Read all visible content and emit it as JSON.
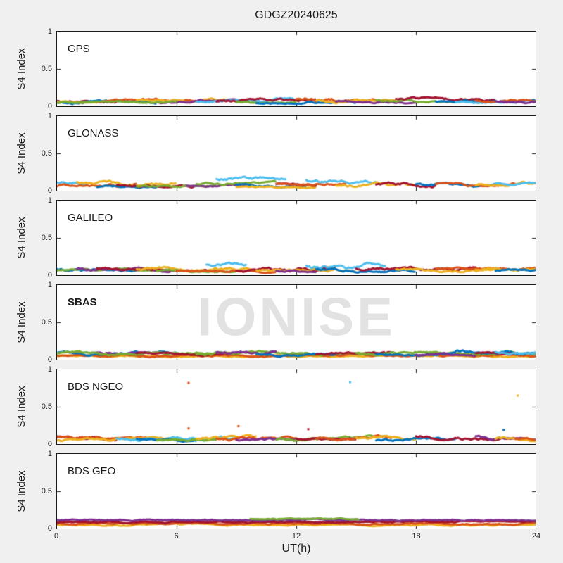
{
  "title": "GDGZ20240625",
  "watermark": "IONISE",
  "axes": {
    "xlabel": "UT(h)",
    "ylabel": "S4 Index",
    "xticks": [
      "0",
      "6",
      "12",
      "18",
      "24"
    ],
    "xtick_hours": [
      0,
      6,
      12,
      18,
      24
    ],
    "inner_tick_hours": [
      6,
      12,
      18
    ],
    "yticks": [
      "1",
      "0.5",
      "0"
    ],
    "ytick_values": [
      1,
      0.5,
      0
    ]
  },
  "colors": {
    "background": "#f0f0f0",
    "panel_bg": "#ffffff",
    "axis": "#1a1a1a",
    "tick_text": "#262626",
    "watermark": "#e2e2e2",
    "palette": [
      "#0072BD",
      "#D95319",
      "#EDB120",
      "#7E2F8E",
      "#77AC30",
      "#4DBEEE",
      "#A2142F"
    ]
  },
  "chart_data": [
    {
      "type": "scatter",
      "label": "GPS",
      "xlim": [
        0,
        24
      ],
      "ylim": [
        0,
        1
      ],
      "band": {
        "mean": 0.07,
        "min": 0.02,
        "max": 0.15
      },
      "segments": [
        {
          "c": 6,
          "x0": 0,
          "x1": 3,
          "m": 0.07,
          "a": 0.045
        },
        {
          "c": 0,
          "x0": 0,
          "x1": 5,
          "m": 0.06,
          "a": 0.04
        },
        {
          "c": 2,
          "x0": 0,
          "x1": 2,
          "m": 0.06,
          "a": 0.03
        },
        {
          "c": 1,
          "x0": 2,
          "x1": 7,
          "m": 0.07,
          "a": 0.04
        },
        {
          "c": 2,
          "x0": 4,
          "x1": 9,
          "m": 0.08,
          "a": 0.04
        },
        {
          "c": 3,
          "x0": 5,
          "x1": 10,
          "m": 0.06,
          "a": 0.035
        },
        {
          "c": 4,
          "x0": 0,
          "x1": 6,
          "m": 0.05,
          "a": 0.03
        },
        {
          "c": 5,
          "x0": 7,
          "x1": 12,
          "m": 0.07,
          "a": 0.04
        },
        {
          "c": 6,
          "x0": 8,
          "x1": 13,
          "m": 0.08,
          "a": 0.045
        },
        {
          "c": 4,
          "x0": 9,
          "x1": 12,
          "m": 0.05,
          "a": 0.03
        },
        {
          "c": 0,
          "x0": 10,
          "x1": 15,
          "m": 0.06,
          "a": 0.035
        },
        {
          "c": 1,
          "x0": 12,
          "x1": 16,
          "m": 0.09,
          "a": 0.05
        },
        {
          "c": 2,
          "x0": 13,
          "x1": 17,
          "m": 0.07,
          "a": 0.04
        },
        {
          "c": 3,
          "x0": 14,
          "x1": 18,
          "m": 0.06,
          "a": 0.03
        },
        {
          "c": 4,
          "x0": 16,
          "x1": 21,
          "m": 0.07,
          "a": 0.04
        },
        {
          "c": 6,
          "x0": 17,
          "x1": 22,
          "m": 0.08,
          "a": 0.045
        },
        {
          "c": 0,
          "x0": 19,
          "x1": 24,
          "m": 0.07,
          "a": 0.04
        },
        {
          "c": 5,
          "x0": 20,
          "x1": 23,
          "m": 0.06,
          "a": 0.03
        },
        {
          "c": 1,
          "x0": 21,
          "x1": 24,
          "m": 0.08,
          "a": 0.04
        },
        {
          "c": 3,
          "x0": 22,
          "x1": 24,
          "m": 0.07,
          "a": 0.035
        }
      ],
      "outliers": []
    },
    {
      "type": "scatter",
      "label": "GLONASS",
      "xlim": [
        0,
        24
      ],
      "ylim": [
        0,
        1
      ],
      "band": {
        "mean": 0.09,
        "min": 0.02,
        "max": 0.22
      },
      "segments": [
        {
          "c": 5,
          "x0": 0,
          "x1": 1.5,
          "m": 0.12,
          "a": 0.05
        },
        {
          "c": 1,
          "x0": 0,
          "x1": 4,
          "m": 0.08,
          "a": 0.04
        },
        {
          "c": 2,
          "x0": 1,
          "x1": 6,
          "m": 0.09,
          "a": 0.05
        },
        {
          "c": 0,
          "x0": 2,
          "x1": 5,
          "m": 0.06,
          "a": 0.03
        },
        {
          "c": 6,
          "x0": 3,
          "x1": 7,
          "m": 0.07,
          "a": 0.04
        },
        {
          "c": 4,
          "x0": 4,
          "x1": 8,
          "m": 0.06,
          "a": 0.03
        },
        {
          "c": 3,
          "x0": 6.5,
          "x1": 9.5,
          "m": 0.06,
          "a": 0.03
        },
        {
          "c": 4,
          "x0": 7,
          "x1": 11,
          "m": 0.1,
          "a": 0.035
        },
        {
          "c": 5,
          "x0": 8,
          "x1": 11.5,
          "m": 0.16,
          "a": 0.05
        },
        {
          "c": 0,
          "x0": 9,
          "x1": 12.5,
          "m": 0.07,
          "a": 0.035
        },
        {
          "c": 2,
          "x0": 9,
          "x1": 13,
          "m": 0.06,
          "a": 0.03
        },
        {
          "c": 6,
          "x0": 11,
          "x1": 13,
          "m": 0.08,
          "a": 0.04
        },
        {
          "c": 1,
          "x0": 11,
          "x1": 14.5,
          "m": 0.08,
          "a": 0.04
        },
        {
          "c": 5,
          "x0": 12.5,
          "x1": 16,
          "m": 0.13,
          "a": 0.05
        },
        {
          "c": 2,
          "x0": 14,
          "x1": 18,
          "m": 0.08,
          "a": 0.05
        },
        {
          "c": 6,
          "x0": 16,
          "x1": 19,
          "m": 0.09,
          "a": 0.05
        },
        {
          "c": 0,
          "x0": 18,
          "x1": 22,
          "m": 0.07,
          "a": 0.04
        },
        {
          "c": 1,
          "x0": 19,
          "x1": 23,
          "m": 0.08,
          "a": 0.04
        },
        {
          "c": 2,
          "x0": 21,
          "x1": 24,
          "m": 0.09,
          "a": 0.05
        },
        {
          "c": 5,
          "x0": 22,
          "x1": 24,
          "m": 0.09,
          "a": 0.04
        }
      ],
      "outliers": []
    },
    {
      "type": "scatter",
      "label": "GALILEO",
      "xlim": [
        0,
        24
      ],
      "ylim": [
        0,
        1
      ],
      "band": {
        "mean": 0.08,
        "min": 0.02,
        "max": 0.2
      },
      "segments": [
        {
          "c": 0,
          "x0": 0,
          "x1": 4,
          "m": 0.07,
          "a": 0.04
        },
        {
          "c": 4,
          "x0": 0,
          "x1": 5,
          "m": 0.06,
          "a": 0.035
        },
        {
          "c": 3,
          "x0": 1,
          "x1": 6,
          "m": 0.08,
          "a": 0.04
        },
        {
          "c": 6,
          "x0": 2,
          "x1": 8,
          "m": 0.07,
          "a": 0.04
        },
        {
          "c": 2,
          "x0": 4,
          "x1": 10,
          "m": 0.08,
          "a": 0.045
        },
        {
          "c": 4,
          "x0": 5,
          "x1": 9,
          "m": 0.05,
          "a": 0.03
        },
        {
          "c": 1,
          "x0": 6,
          "x1": 11,
          "m": 0.06,
          "a": 0.035
        },
        {
          "c": 5,
          "x0": 7.5,
          "x1": 9.5,
          "m": 0.13,
          "a": 0.05
        },
        {
          "c": 6,
          "x0": 9,
          "x1": 14,
          "m": 0.09,
          "a": 0.05
        },
        {
          "c": 2,
          "x0": 10,
          "x1": 15,
          "m": 0.07,
          "a": 0.04
        },
        {
          "c": 3,
          "x0": 11,
          "x1": 13,
          "m": 0.06,
          "a": 0.03
        },
        {
          "c": 5,
          "x0": 12.5,
          "x1": 16.5,
          "m": 0.12,
          "a": 0.06
        },
        {
          "c": 0,
          "x0": 13,
          "x1": 18,
          "m": 0.06,
          "a": 0.035
        },
        {
          "c": 6,
          "x0": 15,
          "x1": 21,
          "m": 0.08,
          "a": 0.045
        },
        {
          "c": 2,
          "x0": 17,
          "x1": 22,
          "m": 0.07,
          "a": 0.04
        },
        {
          "c": 1,
          "x0": 19,
          "x1": 24,
          "m": 0.08,
          "a": 0.045
        },
        {
          "c": 2,
          "x0": 21,
          "x1": 24,
          "m": 0.09,
          "a": 0.05
        },
        {
          "c": 0,
          "x0": 22,
          "x1": 24,
          "m": 0.07,
          "a": 0.04
        }
      ],
      "outliers": []
    },
    {
      "type": "scatter",
      "label": "SBAS",
      "xlim": [
        0,
        24
      ],
      "ylim": [
        0,
        1
      ],
      "band": {
        "mean": 0.08,
        "min": 0.03,
        "max": 0.14
      },
      "segments": [
        {
          "c": 2,
          "x0": 0,
          "x1": 24,
          "m": 0.05,
          "a": 0.025
        },
        {
          "c": 1,
          "x0": 0,
          "x1": 24,
          "m": 0.06,
          "a": 0.03
        },
        {
          "c": 0,
          "x0": 0,
          "x1": 6,
          "m": 0.08,
          "a": 0.04
        },
        {
          "c": 3,
          "x0": 2,
          "x1": 5,
          "m": 0.08,
          "a": 0.035
        },
        {
          "c": 4,
          "x0": 0,
          "x1": 8,
          "m": 0.08,
          "a": 0.035
        },
        {
          "c": 6,
          "x0": 4,
          "x1": 9,
          "m": 0.07,
          "a": 0.03
        },
        {
          "c": 4,
          "x0": 7,
          "x1": 16,
          "m": 0.08,
          "a": 0.04
        },
        {
          "c": 3,
          "x0": 8,
          "x1": 11,
          "m": 0.09,
          "a": 0.04
        },
        {
          "c": 0,
          "x0": 10,
          "x1": 14,
          "m": 0.07,
          "a": 0.035
        },
        {
          "c": 6,
          "x0": 13,
          "x1": 17,
          "m": 0.08,
          "a": 0.035
        },
        {
          "c": 4,
          "x0": 15,
          "x1": 24,
          "m": 0.09,
          "a": 0.04
        },
        {
          "c": 0,
          "x0": 16,
          "x1": 20,
          "m": 0.08,
          "a": 0.04
        },
        {
          "c": 3,
          "x0": 18,
          "x1": 21,
          "m": 0.07,
          "a": 0.03
        },
        {
          "c": 0,
          "x0": 20,
          "x1": 24,
          "m": 0.1,
          "a": 0.045
        },
        {
          "c": 6,
          "x0": 21,
          "x1": 23,
          "m": 0.08,
          "a": 0.03
        },
        {
          "c": 5,
          "x0": 22,
          "x1": 24,
          "m": 0.1,
          "a": 0.04
        }
      ],
      "outliers": []
    },
    {
      "type": "scatter",
      "label": "BDS NGEO",
      "xlim": [
        0,
        24
      ],
      "ylim": [
        0,
        1
      ],
      "band": {
        "mean": 0.08,
        "min": 0.02,
        "max": 0.16
      },
      "segments": [
        {
          "c": 6,
          "x0": 0,
          "x1": 3,
          "m": 0.1,
          "a": 0.05
        },
        {
          "c": 1,
          "x0": 0,
          "x1": 5,
          "m": 0.07,
          "a": 0.04
        },
        {
          "c": 2,
          "x0": 0,
          "x1": 6,
          "m": 0.06,
          "a": 0.035
        },
        {
          "c": 5,
          "x0": 3,
          "x1": 9,
          "m": 0.07,
          "a": 0.045
        },
        {
          "c": 0,
          "x0": 4,
          "x1": 7,
          "m": 0.06,
          "a": 0.03
        },
        {
          "c": 4,
          "x0": 5,
          "x1": 8,
          "m": 0.06,
          "a": 0.03
        },
        {
          "c": 2,
          "x0": 7,
          "x1": 10,
          "m": 0.09,
          "a": 0.05
        },
        {
          "c": 1,
          "x0": 8,
          "x1": 13,
          "m": 0.08,
          "a": 0.045
        },
        {
          "c": 3,
          "x0": 9,
          "x1": 12,
          "m": 0.06,
          "a": 0.03
        },
        {
          "c": 4,
          "x0": 11,
          "x1": 16,
          "m": 0.08,
          "a": 0.045
        },
        {
          "c": 6,
          "x0": 12,
          "x1": 15,
          "m": 0.07,
          "a": 0.035
        },
        {
          "c": 1,
          "x0": 13,
          "x1": 17,
          "m": 0.09,
          "a": 0.05
        },
        {
          "c": 2,
          "x0": 15,
          "x1": 18,
          "m": 0.08,
          "a": 0.04
        },
        {
          "c": 0,
          "x0": 16,
          "x1": 20,
          "m": 0.07,
          "a": 0.04
        },
        {
          "c": 6,
          "x0": 18,
          "x1": 23,
          "m": 0.08,
          "a": 0.045
        },
        {
          "c": 3,
          "x0": 21,
          "x1": 24,
          "m": 0.09,
          "a": 0.045
        },
        {
          "c": 2,
          "x0": 22,
          "x1": 24,
          "m": 0.08,
          "a": 0.04
        },
        {
          "c": 1,
          "x0": 23,
          "x1": 24,
          "m": 0.07,
          "a": 0.035
        }
      ],
      "outliers": [
        {
          "c": 1,
          "x": 6.6,
          "y": 0.82
        },
        {
          "c": 1,
          "x": 6.6,
          "y": 0.21
        },
        {
          "c": 1,
          "x": 9.1,
          "y": 0.24
        },
        {
          "c": 5,
          "x": 14.7,
          "y": 0.83
        },
        {
          "c": 6,
          "x": 12.6,
          "y": 0.2
        },
        {
          "c": 0,
          "x": 22.4,
          "y": 0.19
        },
        {
          "c": 2,
          "x": 23.1,
          "y": 0.65
        }
      ]
    },
    {
      "type": "scatter",
      "label": "BDS GEO",
      "xlim": [
        0,
        24
      ],
      "ylim": [
        0,
        1
      ],
      "band": {
        "mean": 0.09,
        "min": 0.03,
        "max": 0.15
      },
      "segments": [
        {
          "c": 2,
          "x0": 0,
          "x1": 24,
          "m": 0.05,
          "a": 0.02
        },
        {
          "c": 1,
          "x0": 0,
          "x1": 24,
          "m": 0.068,
          "a": 0.022
        },
        {
          "c": 6,
          "x0": 0,
          "x1": 24,
          "m": 0.085,
          "a": 0.018
        },
        {
          "c": 3,
          "x0": 0,
          "x1": 24,
          "m": 0.112,
          "a": 0.02
        },
        {
          "c": 4,
          "x0": 9.7,
          "x1": 15.2,
          "m": 0.13,
          "a": 0.018
        }
      ],
      "outliers": []
    }
  ]
}
